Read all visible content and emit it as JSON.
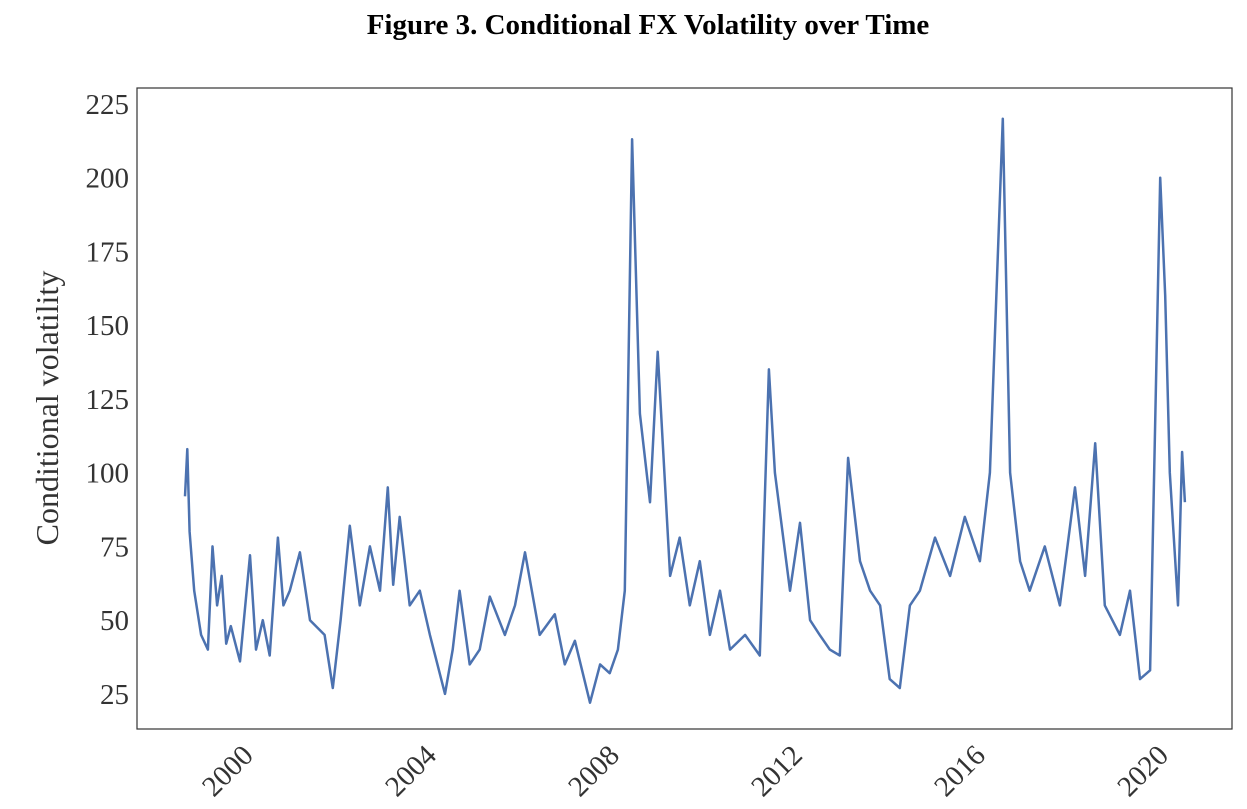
{
  "chart_data": {
    "type": "line",
    "title": "Figure 3. Conditional FX Volatility over Time",
    "y_label": "Conditional volatility",
    "xlim": [
      1997.95,
      2021.88
    ],
    "xticks": [
      2000,
      2004,
      2008,
      2012,
      2016,
      2020
    ],
    "ylim": [
      13.1,
      230.4
    ],
    "yticks": [
      25,
      50,
      75,
      100,
      125,
      150,
      175,
      200,
      225
    ],
    "x": [
      1999.0,
      1999.05,
      1999.1,
      1999.2,
      1999.35,
      1999.5,
      1999.6,
      1999.7,
      1999.8,
      1999.9,
      2000.0,
      2000.2,
      2000.42,
      2000.55,
      2000.7,
      2000.85,
      2001.03,
      2001.15,
      2001.29,
      2001.51,
      2001.73,
      2002.05,
      2002.23,
      2002.4,
      2002.6,
      2002.82,
      2003.04,
      2003.26,
      2003.43,
      2003.55,
      2003.69,
      2003.91,
      2004.13,
      2004.35,
      2004.68,
      2004.85,
      2005.0,
      2005.22,
      2005.44,
      2005.66,
      2005.99,
      2006.21,
      2006.43,
      2006.75,
      2007.08,
      2007.3,
      2007.52,
      2007.85,
      2008.07,
      2008.28,
      2008.46,
      2008.61,
      2008.77,
      2008.94,
      2009.16,
      2009.33,
      2009.6,
      2009.81,
      2010.03,
      2010.25,
      2010.47,
      2010.69,
      2010.91,
      2011.24,
      2011.56,
      2011.76,
      2011.89,
      2012.22,
      2012.44,
      2012.66,
      2012.87,
      2013.09,
      2013.31,
      2013.49,
      2013.75,
      2013.97,
      2014.19,
      2014.4,
      2014.62,
      2014.84,
      2015.06,
      2015.39,
      2015.72,
      2016.04,
      2016.37,
      2016.59,
      2016.87,
      2017.03,
      2017.25,
      2017.46,
      2017.79,
      2018.12,
      2018.45,
      2018.67,
      2018.89,
      2019.1,
      2019.43,
      2019.65,
      2019.87,
      2020.09,
      2020.31,
      2020.42,
      2020.52,
      2020.7,
      2020.79,
      2020.85
    ],
    "series": [
      {
        "name": "Conditional volatility",
        "color": "#4c72b0",
        "values": [
          92,
          108,
          80,
          60,
          45,
          40,
          75,
          55,
          65,
          42,
          48,
          36,
          72,
          40,
          50,
          38,
          78,
          55,
          60,
          73,
          50,
          45,
          27,
          50,
          82,
          55,
          75,
          60,
          95,
          62,
          85,
          55,
          60,
          45,
          25,
          40,
          60,
          35,
          40,
          58,
          45,
          55,
          73,
          45,
          52,
          35,
          43,
          22,
          35,
          32,
          40,
          60,
          213,
          120,
          90,
          141,
          65,
          78,
          55,
          70,
          45,
          60,
          40,
          45,
          38,
          135,
          100,
          60,
          83,
          50,
          45,
          40,
          38,
          105,
          70,
          60,
          55,
          30,
          27,
          55,
          60,
          78,
          65,
          85,
          70,
          100,
          220,
          100,
          70,
          60,
          75,
          55,
          95,
          65,
          110,
          55,
          45,
          60,
          30,
          33,
          200,
          160,
          100,
          55,
          107,
          90
        ]
      }
    ]
  }
}
